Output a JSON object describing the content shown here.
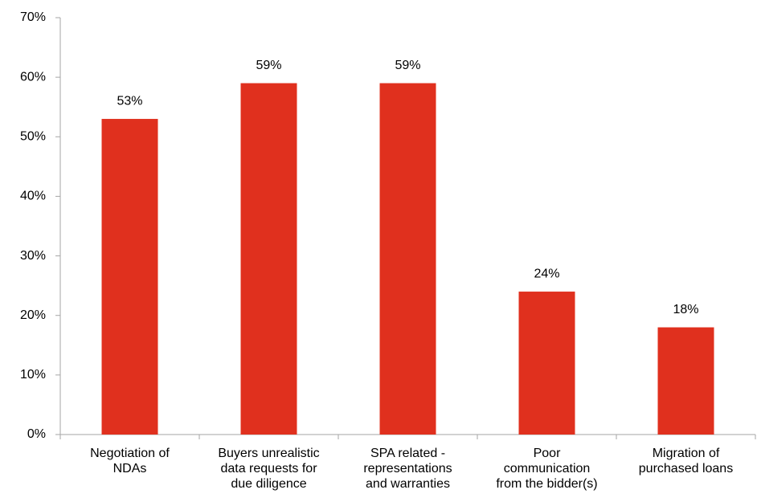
{
  "chart_data": {
    "type": "bar",
    "categories": [
      "Negotiation of\nNDAs",
      "Buyers unrealistic\ndata requests for\ndue diligence",
      "SPA related -\nrepresentations\nand warranties",
      "Poor\ncommunication\nfrom the bidder(s)",
      "Migration of\npurchased loans"
    ],
    "values": [
      53,
      59,
      59,
      24,
      18
    ],
    "value_labels": [
      "53%",
      "59%",
      "59%",
      "24%",
      "18%"
    ],
    "color": "#e0301e",
    "ylim": [
      0,
      70
    ],
    "yticks": [
      {
        "value": 0,
        "label": "0%"
      },
      {
        "value": 10,
        "label": "10%"
      },
      {
        "value": 20,
        "label": "20%"
      },
      {
        "value": 30,
        "label": "30%"
      },
      {
        "value": 40,
        "label": "40%"
      },
      {
        "value": 50,
        "label": "50%"
      },
      {
        "value": 60,
        "label": "60%"
      },
      {
        "value": 70,
        "label": "70%"
      }
    ],
    "grid": false
  }
}
